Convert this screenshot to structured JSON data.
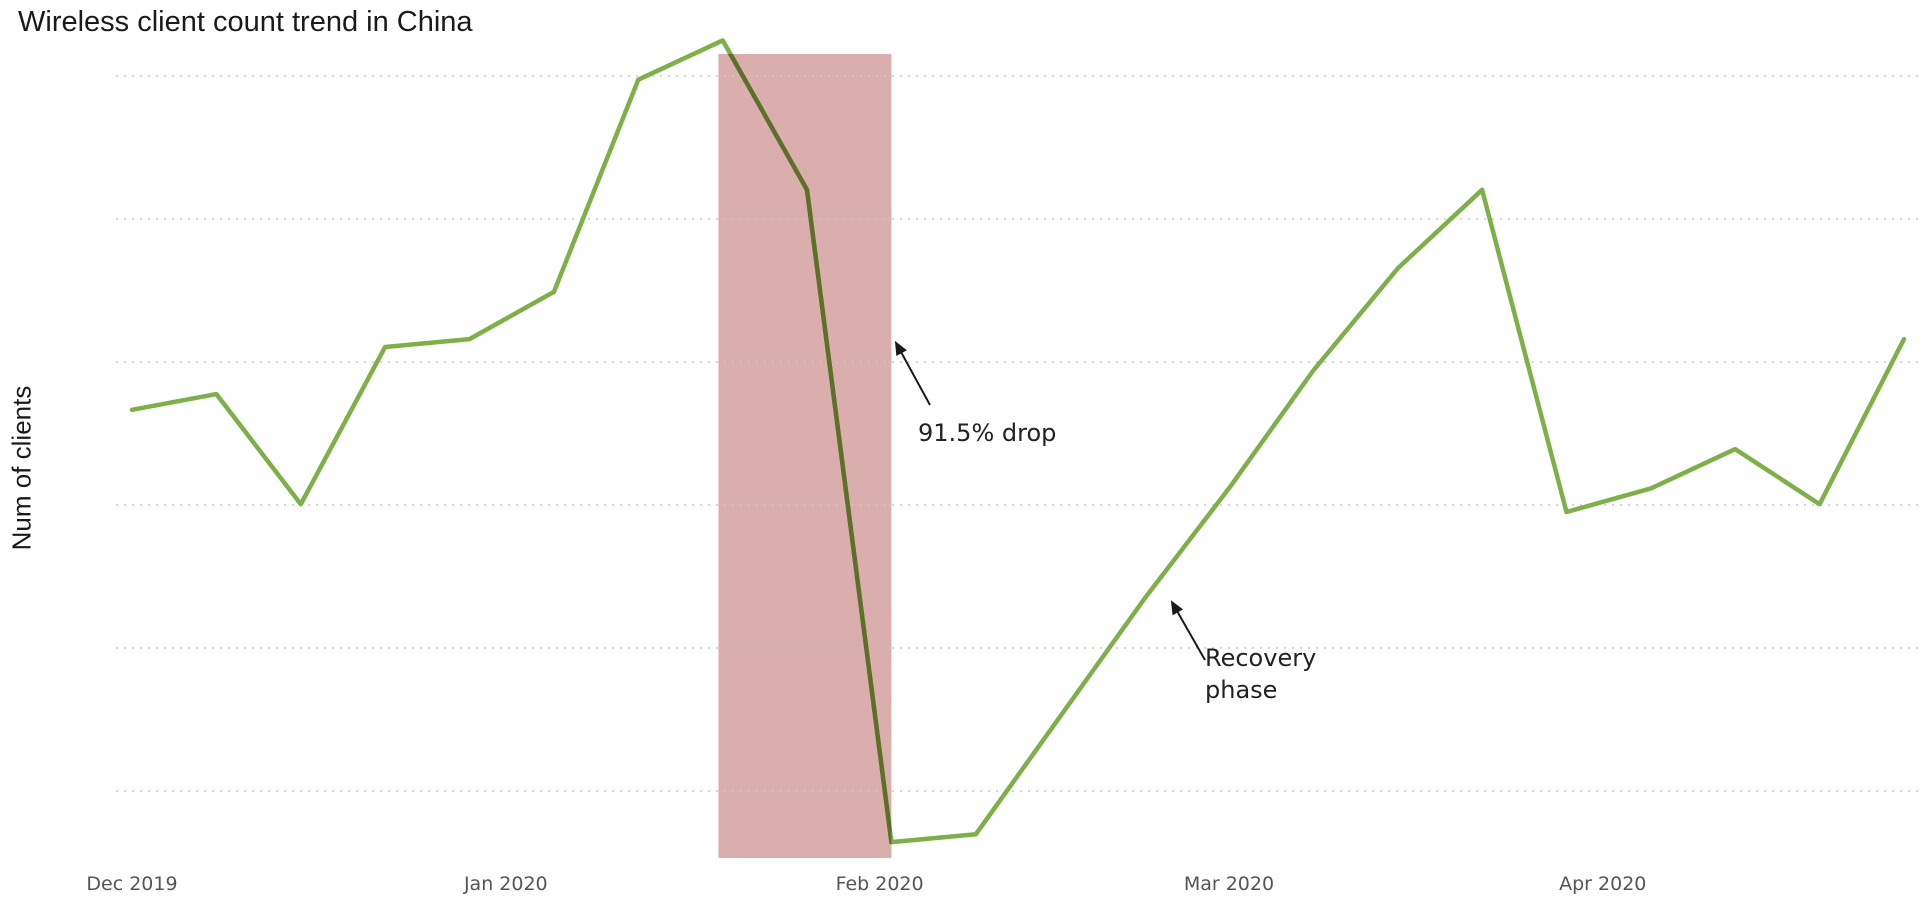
{
  "chart_data": {
    "type": "line",
    "title": "Wireless client count trend in China",
    "xlabel": "",
    "ylabel": "Num of clients",
    "x_ticks": [
      "Dec 2019",
      "Jan 2020",
      "Feb 2020",
      "Mar 2020",
      "Apr 2020"
    ],
    "x_tick_index": [
      0,
      4.43,
      8.86,
      13,
      17.43
    ],
    "ylim": [
      0,
      100
    ],
    "grid": true,
    "legend": "none",
    "series": [
      {
        "values": [
          56,
          58,
          44,
          64,
          65,
          71,
          98,
          103,
          84,
          1,
          2,
          17,
          32,
          46,
          61,
          74,
          84,
          43,
          46,
          51,
          44,
          65
        ]
      }
    ],
    "line_color": "#7db049",
    "highlight": {
      "start_index": 6.95,
      "end_index": 9.0,
      "color": "#d9aeac"
    },
    "annotations": [
      {
        "text_lines": [
          "91.5% drop"
        ],
        "at_index": 9.03,
        "at_value": 65
      },
      {
        "text_lines": [
          "Recovery",
          "phase"
        ],
        "at_index": 12.3,
        "at_value": 32
      }
    ]
  }
}
